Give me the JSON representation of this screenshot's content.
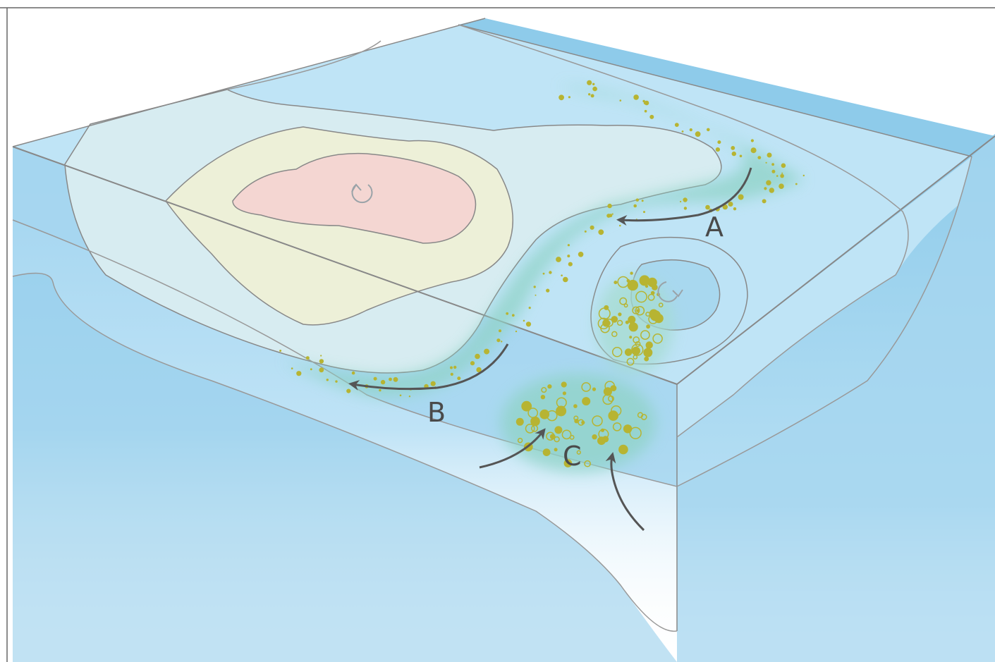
{
  "labels": {
    "a": "A",
    "b": "B",
    "c": "C"
  },
  "colors": {
    "ocean_top": "#bfe4f6",
    "ocean_mid": "#a9d8f0",
    "ocean_deep": "#8ecbea",
    "shelf": "#d6ecf1",
    "warm_ring": "#edf0d8",
    "core": "#f4d6d2",
    "plankton_glow": "#8fd3c6",
    "plankton": "#b7b432",
    "arrow": "#555555",
    "line": "#888888"
  },
  "icons": {
    "eddy_warm": "rotation-arrow-icon",
    "eddy_cold": "rotation-arrow-icon",
    "flow": "curved-arrow-icon"
  }
}
